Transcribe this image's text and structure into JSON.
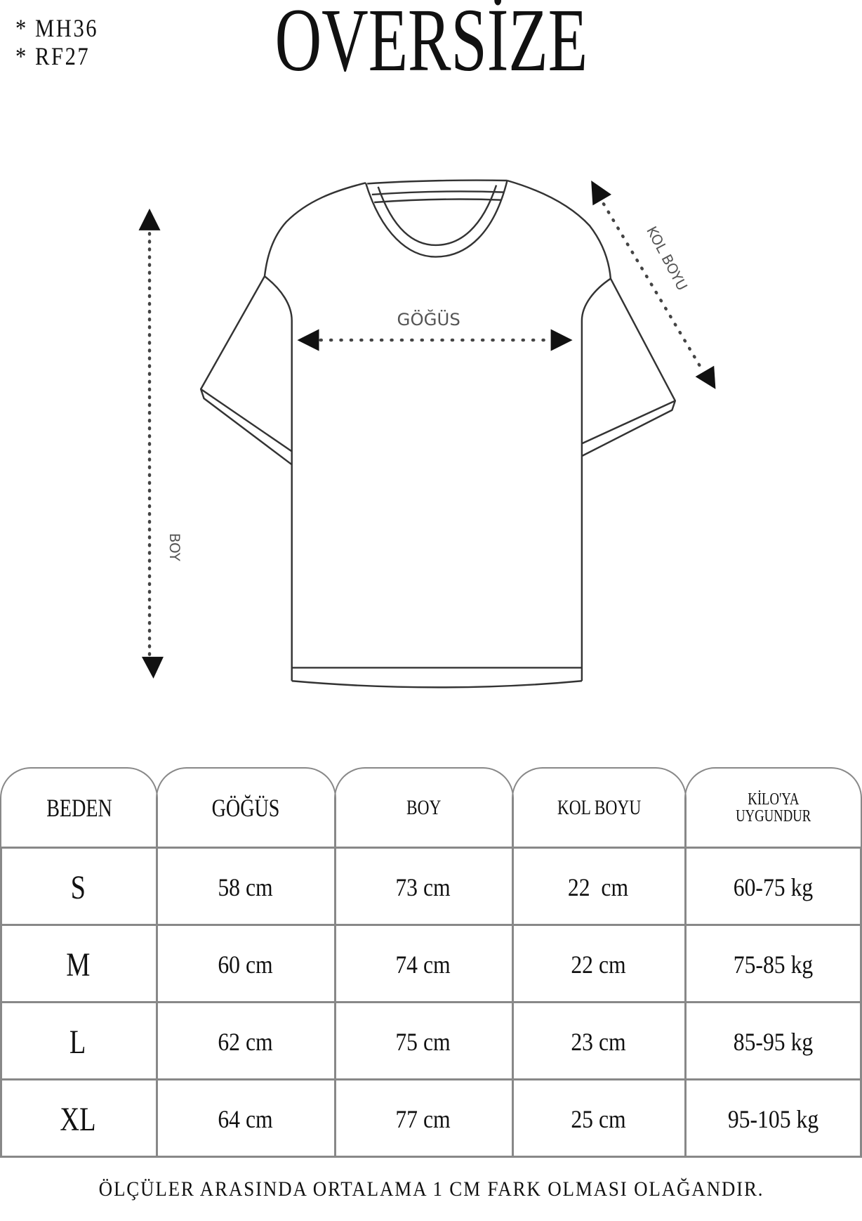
{
  "codes": [
    "* MH36",
    "* RF27"
  ],
  "title": "OVERSİZE",
  "diagram": {
    "chest_label": "GÖĞÜS",
    "length_label": "BOY",
    "sleeve_label": "KOL BOYU"
  },
  "table": {
    "headers": [
      "BEDEN",
      "GÖĞÜS",
      "BOY",
      "KOL BOYU",
      "KİLO'YA UYGUNDUR"
    ],
    "header_weight_lines": [
      "KİLO'YA",
      "UYGUNDUR"
    ],
    "rows": [
      [
        "S",
        "58 cm",
        "73 cm",
        "22  cm",
        "60-75 kg"
      ],
      [
        "M",
        "60 cm",
        "74 cm",
        "22 cm",
        "75-85 kg"
      ],
      [
        "L",
        "62 cm",
        "75 cm",
        "23 cm",
        "85-95 kg"
      ],
      [
        "XL",
        "64 cm",
        "77 cm",
        "25 cm",
        "95-105 kg"
      ]
    ]
  },
  "footer": "ÖLÇÜLER ARASINDA ORTALAMA 1 CM FARK OLMASI OLAĞANDIR.",
  "colors": {
    "lines": "#888888",
    "text": "#111111"
  }
}
